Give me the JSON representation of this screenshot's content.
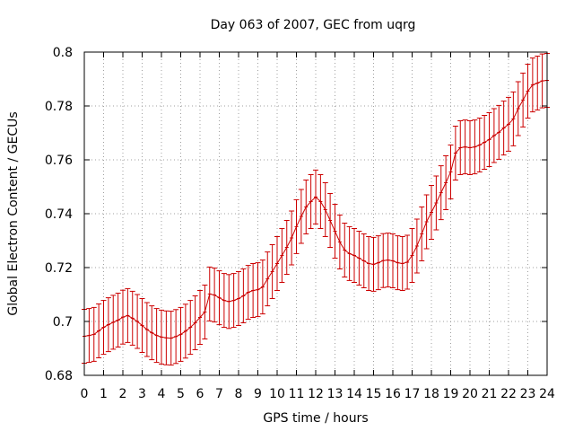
{
  "chart_data": {
    "type": "line",
    "title": "Day 063 of 2007, GEC from uqrg",
    "xlabel": "GPS time / hours",
    "ylabel": "Global Electron Content / GECUs",
    "xlim": [
      0,
      24
    ],
    "ylim": [
      0.68,
      0.8
    ],
    "x_ticks": [
      "0",
      "1",
      "2",
      "3",
      "4",
      "5",
      "6",
      "7",
      "8",
      "9",
      "10",
      "11",
      "12",
      "13",
      "14",
      "15",
      "16",
      "17",
      "18",
      "19",
      "20",
      "21",
      "22",
      "23",
      "24"
    ],
    "y_ticks": [
      "0.68",
      "0.7",
      "0.72",
      "0.74",
      "0.76",
      "0.78",
      "0.8"
    ],
    "grid": true,
    "error_bar": 0.01,
    "color": "#cc0000",
    "series": [
      {
        "x": [
          0,
          0.25,
          0.5,
          0.75,
          1,
          1.25,
          1.5,
          1.75,
          2,
          2.25,
          2.5,
          2.75,
          3,
          3.25,
          3.5,
          3.75,
          4,
          4.25,
          4.5,
          4.75,
          5,
          5.25,
          5.5,
          5.75,
          6,
          6.25,
          6.5,
          6.75,
          7,
          7.25,
          7.5,
          7.75,
          8,
          8.25,
          8.5,
          8.75,
          9,
          9.25,
          9.5,
          9.75,
          10,
          10.25,
          10.5,
          10.75,
          11,
          11.25,
          11.5,
          11.75,
          12,
          12.25,
          12.5,
          12.75,
          13,
          13.25,
          13.5,
          13.75,
          14,
          14.25,
          14.5,
          14.75,
          15,
          15.25,
          15.5,
          15.75,
          16,
          16.25,
          16.5,
          16.75,
          17,
          17.25,
          17.5,
          17.75,
          18,
          18.25,
          18.5,
          18.75,
          19,
          19.25,
          19.5,
          19.75,
          20,
          20.25,
          20.5,
          20.75,
          21,
          21.25,
          21.5,
          21.75,
          22,
          22.25,
          22.5,
          22.75,
          23,
          23.25,
          23.5,
          23.75,
          24
        ],
        "y": [
          0.6945,
          0.6948,
          0.6952,
          0.6965,
          0.6978,
          0.6988,
          0.6997,
          0.7005,
          0.7016,
          0.7022,
          0.7012,
          0.7,
          0.6985,
          0.697,
          0.6958,
          0.6948,
          0.6942,
          0.6939,
          0.6938,
          0.6944,
          0.6952,
          0.6964,
          0.6978,
          0.6995,
          0.7015,
          0.7035,
          0.7102,
          0.7098,
          0.7088,
          0.7078,
          0.7074,
          0.7078,
          0.7085,
          0.7095,
          0.7108,
          0.7115,
          0.7118,
          0.7128,
          0.7158,
          0.7185,
          0.7215,
          0.7245,
          0.7275,
          0.731,
          0.7352,
          0.739,
          0.7425,
          0.7445,
          0.7462,
          0.7445,
          0.7415,
          0.7375,
          0.7335,
          0.7295,
          0.7265,
          0.7252,
          0.7245,
          0.7235,
          0.7225,
          0.7215,
          0.7212,
          0.7218,
          0.7226,
          0.7228,
          0.7225,
          0.7218,
          0.7215,
          0.722,
          0.7245,
          0.728,
          0.7325,
          0.737,
          0.7405,
          0.744,
          0.7478,
          0.7515,
          0.7555,
          0.7625,
          0.7645,
          0.7648,
          0.7645,
          0.7648,
          0.7655,
          0.7665,
          0.7675,
          0.769,
          0.7702,
          0.7718,
          0.7732,
          0.7752,
          0.779,
          0.7822,
          0.7855,
          0.7878,
          0.7885,
          0.7893,
          0.7895
        ]
      }
    ]
  }
}
